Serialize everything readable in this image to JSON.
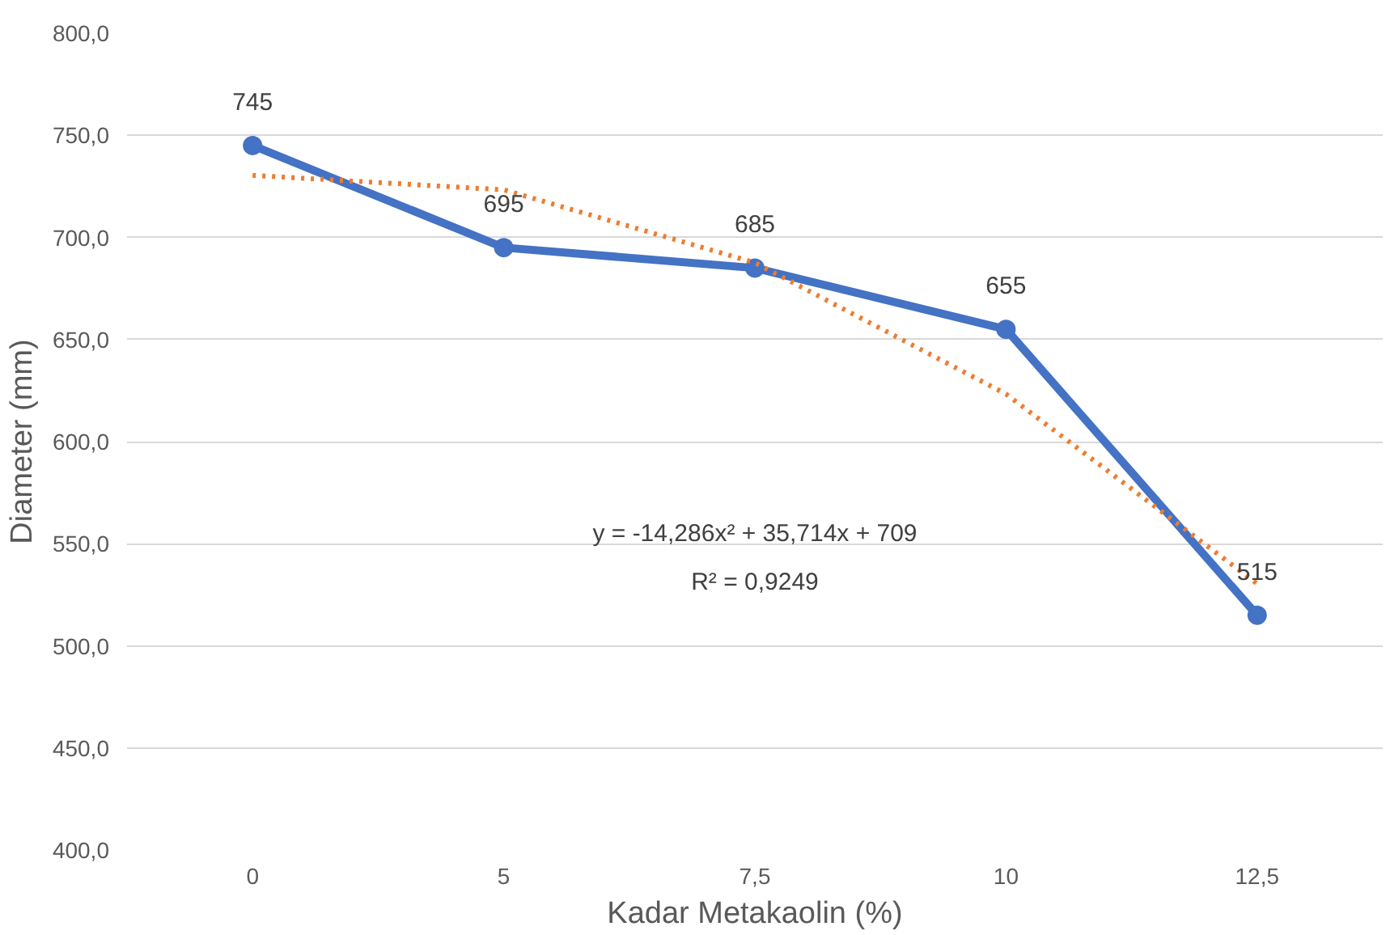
{
  "chart_data": {
    "type": "line",
    "xlabel": "Kadar Metakaolin (%)",
    "ylabel": "Diameter (mm)",
    "categories": [
      "0",
      "5",
      "7,5",
      "10",
      "12,5"
    ],
    "ylim": [
      400,
      800
    ],
    "yticks": [
      {
        "value": 400,
        "label": "400,0"
      },
      {
        "value": 450,
        "label": "450,0"
      },
      {
        "value": 500,
        "label": "500,0"
      },
      {
        "value": 550,
        "label": "550,0"
      },
      {
        "value": 600,
        "label": "600,0"
      },
      {
        "value": 650,
        "label": "650,0"
      },
      {
        "value": 700,
        "label": "700,0"
      },
      {
        "value": 750,
        "label": "750,0"
      },
      {
        "value": 800,
        "label": "800,0"
      }
    ],
    "grid": "y",
    "marker": "circle",
    "line_style": "solid",
    "series": [
      {
        "color": "#4472c4",
        "values": [
          745,
          695,
          685,
          655,
          515
        ],
        "value_labels": [
          "745",
          "695",
          "685",
          "655",
          "515"
        ]
      },
      {
        "color": "#ed7d31",
        "values": [
          730.4,
          723.3,
          687.6,
          623.3,
          530.4
        ],
        "marker": "none",
        "line_style": "dotted"
      }
    ],
    "annotations": [
      "y = -14,286x² + 35,714x + 709",
      "R² = 0,9249"
    ]
  }
}
